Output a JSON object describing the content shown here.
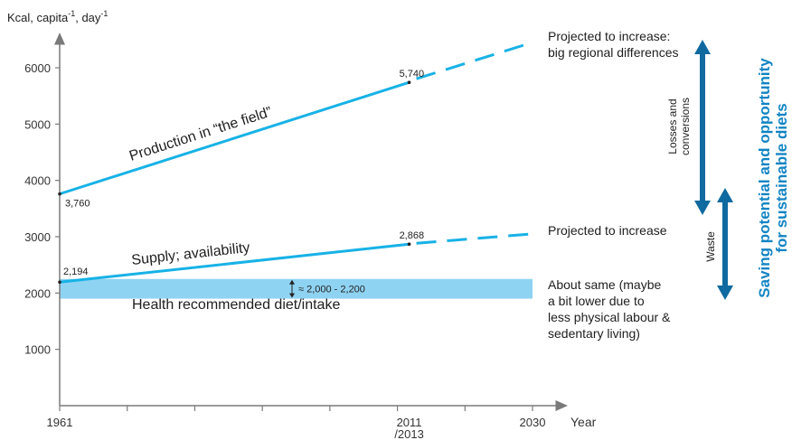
{
  "chart_data": {
    "type": "line",
    "ylabel": "Kcal, capita",
    "ylabel_sup1": "-1",
    "ylabel_mid": ", day",
    "ylabel_sup2": "-1",
    "xlabel": "Year",
    "x_ticks": [
      "1961",
      "2011\n/2013",
      "2030"
    ],
    "x_tick_2011_line1": "2011",
    "x_tick_2011_line2": "/2013",
    "x_tick_1961": "1961",
    "x_tick_2030": "2030",
    "y_ticks": [
      1000,
      2000,
      3000,
      4000,
      5000,
      6000
    ],
    "ylim": [
      0,
      6600
    ],
    "xlim": [
      1961,
      2030
    ],
    "series": [
      {
        "name": "Production in “the field”",
        "points": [
          {
            "x": 1961,
            "y": 3760
          },
          {
            "x": 2012,
            "y": 5740
          }
        ],
        "projection": [
          {
            "x": 2012,
            "y": 5740
          },
          {
            "x": 2030,
            "y": 6450
          }
        ],
        "point_labels": [
          "3,760",
          "5,740"
        ],
        "projection_label_line1": "Projected to increase:",
        "projection_label_line2": "big regional differences",
        "color": "#17b2e6"
      },
      {
        "name": "Supply; availability",
        "points": [
          {
            "x": 1961,
            "y": 2194
          },
          {
            "x": 2012,
            "y": 2868
          }
        ],
        "projection": [
          {
            "x": 2012,
            "y": 2868
          },
          {
            "x": 2030,
            "y": 3050
          }
        ],
        "point_labels": [
          "2,194",
          "2,868"
        ],
        "projection_label": "Projected to increase",
        "color": "#17b2e6"
      }
    ],
    "band": {
      "name": "Health recommended diet/intake",
      "range": [
        2000,
        2200
      ],
      "range_label": "≈ 2,000 - 2,200",
      "color": "#8fd3f2",
      "note_lines": [
        "About same (maybe",
        "a bit lower due to",
        "less physical labour &",
        "sedentary living)"
      ]
    },
    "annotations": {
      "losses_line1": "Losses and",
      "losses_line2": "conversions",
      "waste": "Waste",
      "saving_line1": "Saving potential and opportunity",
      "saving_line2": "for sustainable diets",
      "arrow_color": "#0f6aa0",
      "saving_color": "#1284c3"
    }
  }
}
